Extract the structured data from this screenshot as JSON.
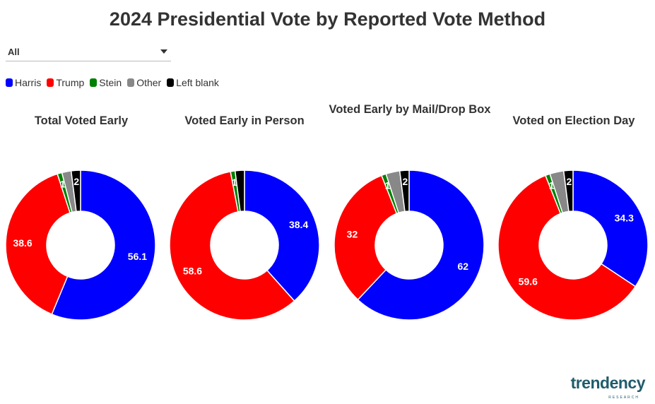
{
  "header": {
    "title": "2024 Presidential Vote by Reported Vote Method"
  },
  "filter": {
    "selected": "All"
  },
  "legend": [
    {
      "label": "Harris",
      "color": "#0000ff"
    },
    {
      "label": "Trump",
      "color": "#ff0000"
    },
    {
      "label": "Stein",
      "color": "#008000"
    },
    {
      "label": "Other",
      "color": "#888888"
    },
    {
      "label": "Left blank",
      "color": "#000000"
    }
  ],
  "brand": {
    "logo_text": "trendency",
    "logo_sub": "RESEARCH"
  },
  "chart_data": [
    {
      "type": "pie",
      "title": "Total Voted Early",
      "labels": [
        "Harris",
        "Trump",
        "Stein",
        "Other",
        "Left blank"
      ],
      "values": [
        56.1,
        38.6,
        1,
        2,
        2
      ],
      "data_labels": [
        "56.1",
        "38.6",
        "1",
        "",
        "2"
      ]
    },
    {
      "type": "pie",
      "title": "Voted Early in Person",
      "labels": [
        "Harris",
        "Trump",
        "Stein",
        "Other",
        "Left blank"
      ],
      "values": [
        38.4,
        58.6,
        1,
        0,
        2
      ],
      "data_labels": [
        "38.4",
        "58.6",
        "1",
        "",
        ""
      ]
    },
    {
      "type": "pie",
      "title": "Voted Early by Mail/Drop Box",
      "labels": [
        "Harris",
        "Trump",
        "Stein",
        "Other",
        "Left blank"
      ],
      "values": [
        62,
        32,
        1,
        3,
        2
      ],
      "data_labels": [
        "62",
        "32",
        "1",
        "",
        "2"
      ]
    },
    {
      "type": "pie",
      "title": "Voted on Election Day",
      "labels": [
        "Harris",
        "Trump",
        "Stein",
        "Other",
        "Left blank"
      ],
      "values": [
        34.3,
        59.6,
        1,
        3,
        2
      ],
      "data_labels": [
        "34.3",
        "59.6",
        "1",
        "",
        "2"
      ]
    }
  ]
}
